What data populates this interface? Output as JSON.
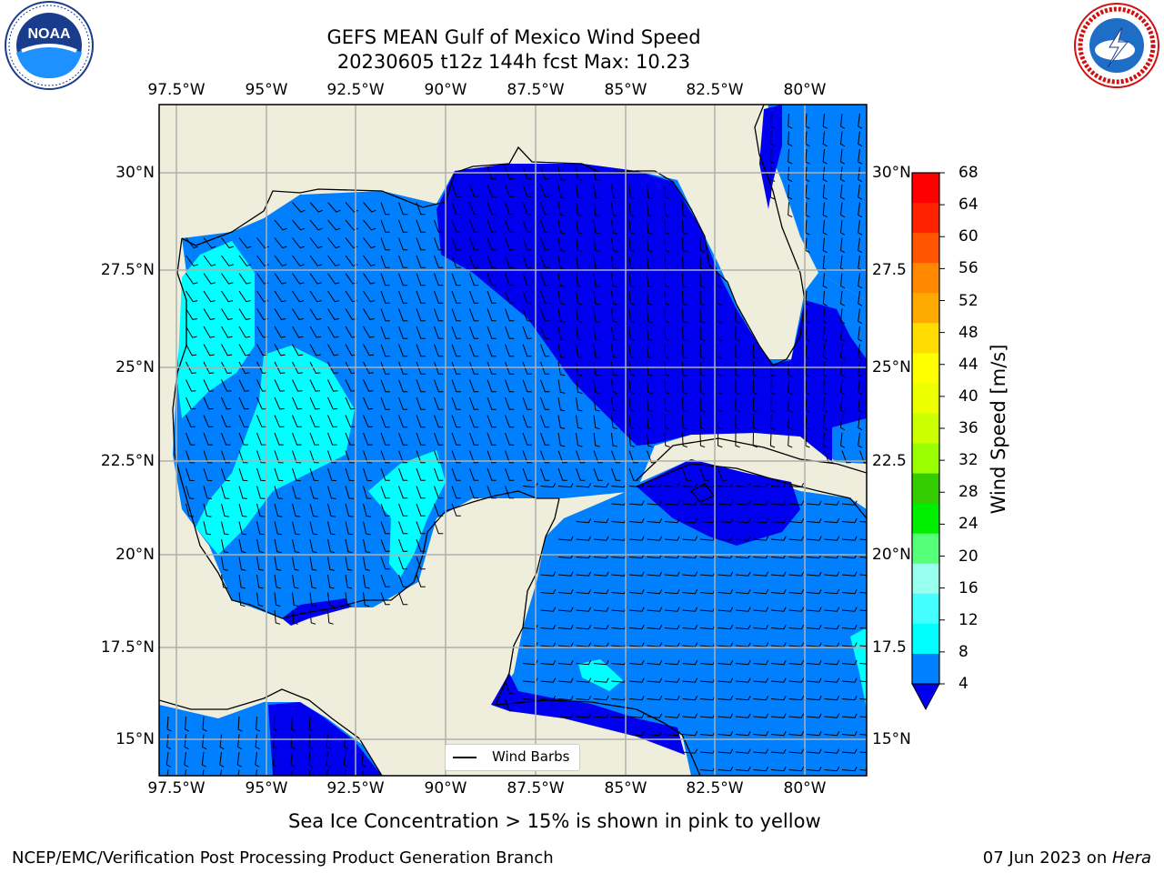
{
  "title": {
    "line1": "GEFS MEAN Gulf of Mexico Wind Speed",
    "line2": "20230605 t12z 144h fcst   Max: 10.23"
  },
  "axes": {
    "lon_labels": [
      "97.5°W",
      "95°W",
      "92.5°W",
      "90°W",
      "87.5°W",
      "85°W",
      "82.5°W",
      "80°W"
    ],
    "lat_labels_left": [
      "30°N",
      "27.5°N",
      "25°N",
      "22.5°N",
      "20°N",
      "17.5°N",
      "15°N"
    ],
    "lat_labels_right": [
      "30°N",
      "27.5",
      "25°N",
      "22.5",
      "20°N",
      "17.5",
      "15°N"
    ]
  },
  "colorbar": {
    "label": "Wind Speed [m/s]",
    "ticks": [
      "68",
      "64",
      "60",
      "56",
      "52",
      "48",
      "44",
      "40",
      "36",
      "32",
      "28",
      "24",
      "20",
      "16",
      "12",
      "8",
      "4"
    ],
    "colors": [
      "#ff0000",
      "#ff2200",
      "#ff5500",
      "#ff8800",
      "#ffaa00",
      "#ffdd00",
      "#ffff00",
      "#eeff00",
      "#ccff00",
      "#99ff00",
      "#33cc00",
      "#00ee00",
      "#55ff77",
      "#99ffee",
      "#44ffff",
      "#00ffff",
      "#0080ff"
    ],
    "under_color": "#0000ee"
  },
  "legend": {
    "label": "Wind Barbs"
  },
  "note": "Sea Ice Concentration > 15% is shown in pink to yellow",
  "footer": {
    "left": "NCEP/EMC/Verification Post Processing Product Generation Branch",
    "date": "07 Jun 2023 on ",
    "machine": "Hera"
  },
  "logos": {
    "left": {
      "name": "noaa-logo",
      "text": "NOAA"
    },
    "right": {
      "name": "nws-logo",
      "text": "NATIONAL WEATHER SERVICE"
    }
  },
  "map_colors": {
    "land": "#efeedc",
    "low_wind": "#0000ee",
    "medium_wind": "#0080ff",
    "high_wind": "#00ffff"
  }
}
